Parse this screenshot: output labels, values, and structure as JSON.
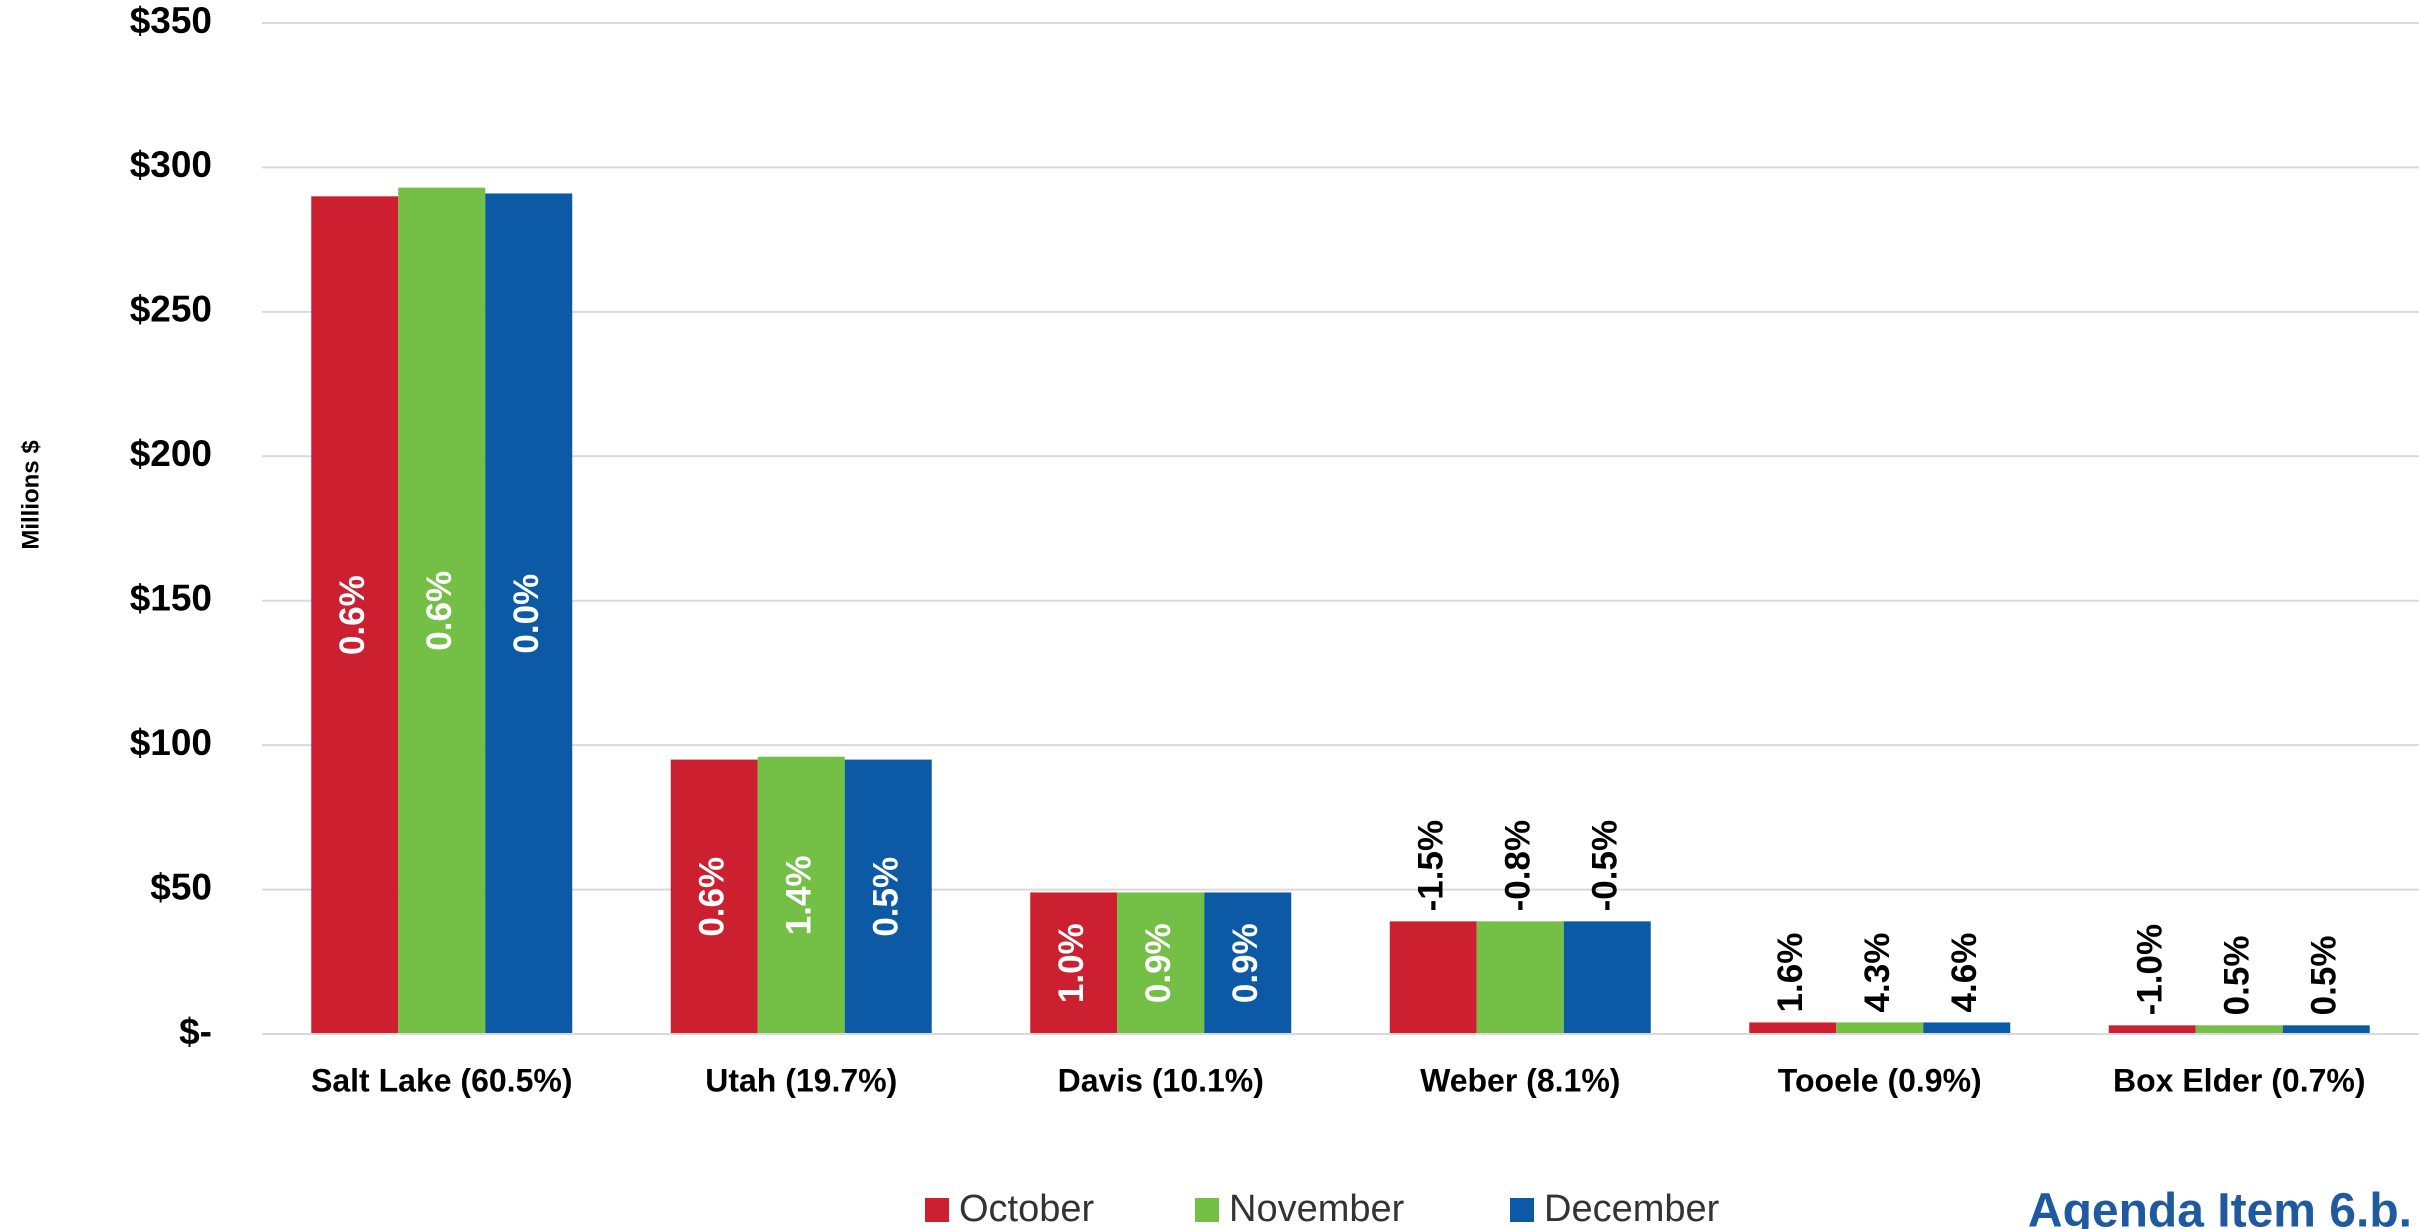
{
  "chart_data": {
    "type": "bar",
    "y_label": "Millions $",
    "categories": [
      "Salt Lake (60.5%)",
      "Utah (19.7%)",
      "Davis (10.1%)",
      "Weber (8.1%)",
      "Tooele (0.9%)",
      "Box Elder (0.7%)"
    ],
    "series": [
      {
        "name": "October",
        "color": "#cc2031",
        "values": [
          290,
          95,
          49,
          39,
          4,
          3
        ],
        "growth": [
          "0.6%",
          "0.6%",
          "1.0%",
          "-1.5%",
          "1.6%",
          "-1.0%"
        ]
      },
      {
        "name": "November",
        "color": "#74bf46",
        "values": [
          293,
          96,
          49,
          39,
          4,
          3
        ],
        "growth": [
          "0.6%",
          "1.4%",
          "0.9%",
          "-0.8%",
          "4.3%",
          "0.5%"
        ]
      },
      {
        "name": "December",
        "color": "#0c5aa6",
        "values": [
          291,
          95,
          49,
          39,
          4,
          3
        ],
        "growth": [
          "0.0%",
          "0.5%",
          "0.9%",
          "-0.5%",
          "4.6%",
          "0.5%"
        ]
      }
    ],
    "ylim": [
      0,
      350
    ],
    "yticks": [
      {
        "value": 0,
        "label": "$-"
      },
      {
        "value": 50,
        "label": "$50"
      },
      {
        "value": 100,
        "label": "$100"
      },
      {
        "value": 150,
        "label": "$150"
      },
      {
        "value": 200,
        "label": "$200"
      },
      {
        "value": 250,
        "label": "$250"
      },
      {
        "value": 300,
        "label": "$300"
      },
      {
        "value": 350,
        "label": "$350"
      }
    ],
    "grid": true,
    "legend": "bottom",
    "annotation": "Agenda Item 6.b."
  }
}
